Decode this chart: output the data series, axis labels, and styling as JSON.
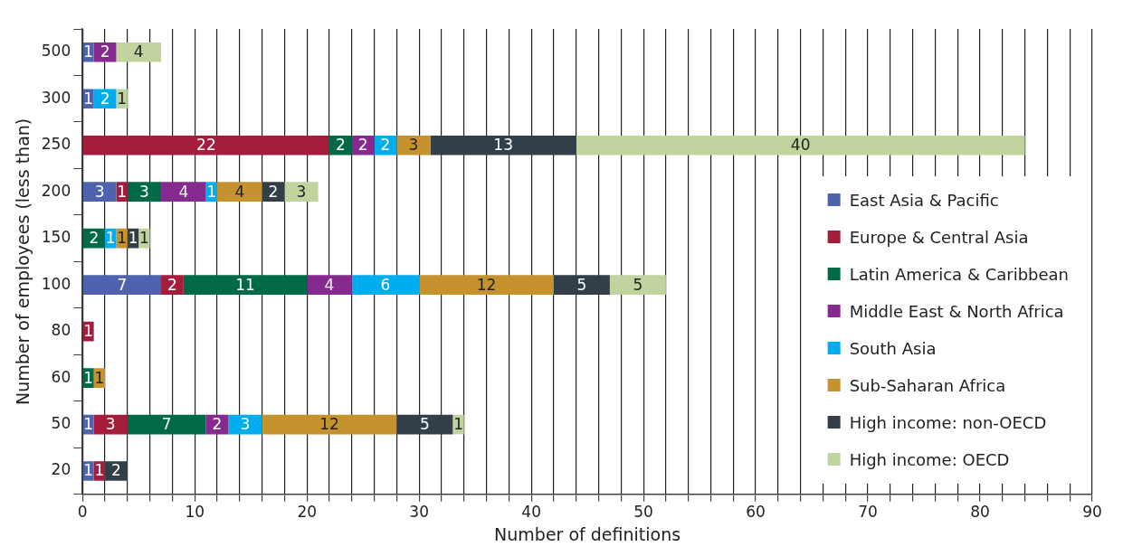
{
  "chart_data": {
    "type": "bar",
    "orientation": "horizontal",
    "stacked": true,
    "data_labels": true,
    "grid": "x",
    "legend": "bottom right",
    "xlabel": "Number of definitions",
    "ylabel": "Number of employees (less than)",
    "categories": [
      "500",
      "300",
      "250",
      "200",
      "150",
      "100",
      "80",
      "60",
      "50",
      "20"
    ],
    "xlim": [
      0,
      90
    ],
    "xticks": [
      0,
      {
        "value": 2,
        "label": null
      },
      {
        "value": 4,
        "label": null
      },
      {
        "value": 6,
        "label": null
      },
      {
        "value": 8,
        "label": null
      },
      10,
      {
        "value": 12,
        "label": null
      },
      {
        "value": 14,
        "label": null
      },
      {
        "value": 16,
        "label": null
      },
      {
        "value": 18,
        "label": null
      },
      20,
      {
        "value": 22,
        "label": null
      },
      {
        "value": 24,
        "label": null
      },
      {
        "value": 26,
        "label": null
      },
      {
        "value": 28,
        "label": null
      },
      30,
      {
        "value": 32,
        "label": null
      },
      {
        "value": 34,
        "label": null
      },
      {
        "value": 36,
        "label": null
      },
      {
        "value": 38,
        "label": null
      },
      40,
      {
        "value": 42,
        "label": null
      },
      {
        "value": 44,
        "label": null
      },
      {
        "value": 46,
        "label": null
      },
      {
        "value": 48,
        "label": null
      },
      50,
      {
        "value": 52,
        "label": null
      },
      {
        "value": 54,
        "label": null
      },
      {
        "value": 56,
        "label": null
      },
      {
        "value": 58,
        "label": null
      },
      60,
      {
        "value": 62,
        "label": null
      },
      {
        "value": 64,
        "label": null
      },
      {
        "value": 66,
        "label": null
      },
      {
        "value": 68,
        "label": null
      },
      70,
      {
        "value": 72,
        "label": null
      },
      {
        "value": 74,
        "label": null
      },
      {
        "value": 76,
        "label": null
      },
      {
        "value": 78,
        "label": null
      },
      80,
      {
        "value": 82,
        "label": null
      },
      {
        "value": 84,
        "label": null
      },
      {
        "value": 86,
        "label": null
      },
      {
        "value": 88,
        "label": null
      },
      90
    ],
    "series": [
      {
        "name": "East Asia & Pacific",
        "color": "#4f62ad",
        "values": [
          1,
          1,
          null,
          3,
          null,
          7,
          null,
          null,
          1,
          1
        ]
      },
      {
        "name": "Europe & Central Asia",
        "color": "#a51d3c",
        "values": [
          null,
          null,
          22,
          1,
          null,
          2,
          1,
          null,
          3,
          1
        ]
      },
      {
        "name": "Latin America & Caribbean",
        "color": "#006a47",
        "values": [
          null,
          null,
          2,
          3,
          2,
          11,
          null,
          1,
          7,
          null
        ]
      },
      {
        "name": "Middle East & North Africa",
        "color": "#862a8f",
        "values": [
          2,
          null,
          2,
          4,
          null,
          4,
          null,
          null,
          2,
          null
        ]
      },
      {
        "name": "South Asia",
        "color": "#00aeef",
        "values": [
          null,
          2,
          2,
          1,
          1,
          6,
          null,
          null,
          3,
          null
        ]
      },
      {
        "name": "Sub-Saharan Africa",
        "color": "#c6922e",
        "values": [
          null,
          null,
          3,
          4,
          1,
          12,
          null,
          1,
          12,
          null
        ]
      },
      {
        "name": "High income: non-OECD",
        "color": "#333f48",
        "values": [
          null,
          null,
          13,
          2,
          1,
          5,
          null,
          null,
          5,
          2
        ]
      },
      {
        "name": "High income: OECD",
        "color": "#c1d39e",
        "values": [
          4,
          1,
          40,
          3,
          1,
          5,
          null,
          null,
          1,
          null
        ]
      }
    ]
  }
}
